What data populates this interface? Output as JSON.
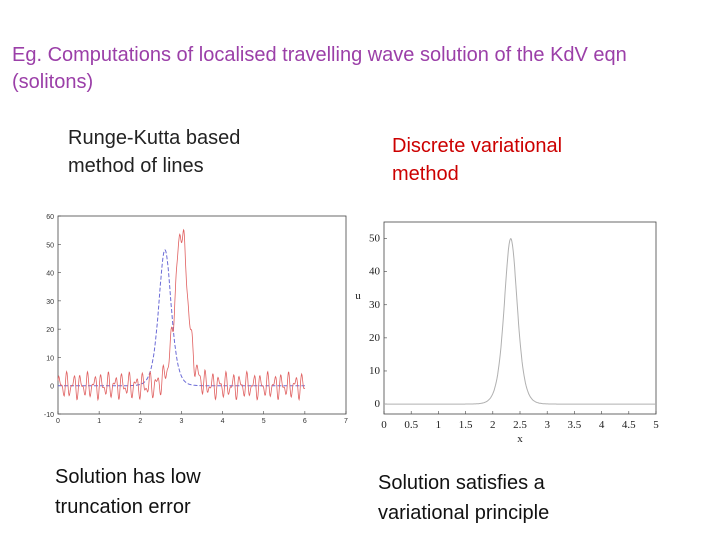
{
  "title": "Eg. Computations of localised travelling wave solution of the KdV eqn (solitons)",
  "left_caption": "Runge-Kutta based method of lines",
  "right_caption": "Discrete variational method",
  "left_footer": "Solution has low truncation error",
  "right_footer": "Solution satisfies a variational principle",
  "colors": {
    "title": "#9b3fa8",
    "right_caption": "#cc0000",
    "blue_series": "#6b6bd6",
    "red_series": "#e06060",
    "gray_series": "#b0b0b0"
  },
  "chart_data": [
    {
      "type": "line",
      "title": "",
      "xlabel": "",
      "ylabel": "",
      "xlim": [
        0,
        7
      ],
      "ylim": [
        -10,
        60
      ],
      "x_ticks": [
        "0",
        "1",
        "2",
        "3",
        "4",
        "5",
        "6",
        "7"
      ],
      "y_ticks": [
        "-10",
        "0",
        "10",
        "20",
        "30",
        "40",
        "50",
        "60"
      ],
      "series": [
        {
          "style": "dashed",
          "color": "#6b6bd6",
          "shape": "soliton",
          "center": 2.6,
          "amplitude": 48
        },
        {
          "style": "solid",
          "color": "#e06060",
          "shape": "soliton-with-noise",
          "center": 3.0,
          "amplitude": 55,
          "noise_amplitude": 5
        }
      ]
    },
    {
      "type": "line",
      "title": "",
      "xlabel": "x",
      "ylabel": "u",
      "xlim": [
        0,
        5
      ],
      "ylim": [
        -3,
        55
      ],
      "x_ticks": [
        "0",
        "0.5",
        "1",
        "1.5",
        "2",
        "2.5",
        "3",
        "3.5",
        "4",
        "4.5",
        "5"
      ],
      "y_ticks": [
        "0",
        "10",
        "20",
        "30",
        "40",
        "50"
      ],
      "series": [
        {
          "style": "solid",
          "color": "#b0b0b0",
          "shape": "soliton",
          "center": 2.33,
          "amplitude": 50
        }
      ]
    }
  ]
}
